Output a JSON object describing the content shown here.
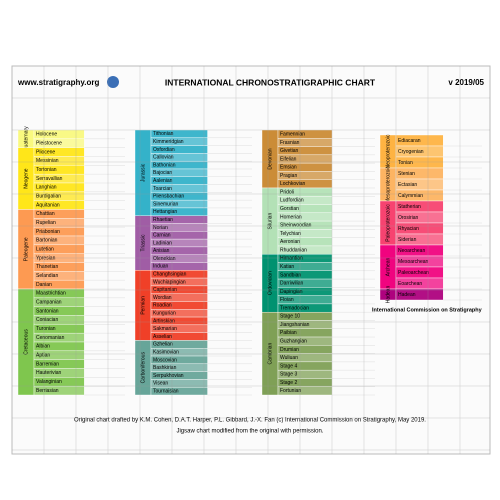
{
  "header": {
    "url": "www.stratigraphy.org",
    "title": "INTERNATIONAL CHRONOSTRATIGRAPHIC CHART",
    "version": "v 2019/05"
  },
  "columns": [
    {
      "periods": [
        {
          "name": "Quaternary",
          "color": "#f9f97f",
          "stages": [
            "Holocene",
            "Pleistocene"
          ]
        },
        {
          "name": "Neogene",
          "color": "#ffe619",
          "stages": [
            "Pliocene",
            "Messinian",
            "Tortonian",
            "Serravallian",
            "Langhian",
            "Burdigalian",
            "Aquitanian"
          ]
        },
        {
          "name": "Paleogene",
          "color": "#fd9a52",
          "stages": [
            "Chattian",
            "Rupelian",
            "Priabonian",
            "Bartonian",
            "Lutetian",
            "Ypresian",
            "Thanetian",
            "Selandian",
            "Danian"
          ]
        },
        {
          "name": "Cretaceous",
          "color": "#7fc64e",
          "stages": [
            "Maastrichtian",
            "Campanian",
            "Santonian",
            "Coniacian",
            "Turonian",
            "Cenomanian",
            "Albian",
            "Aptian",
            "Barremian",
            "Hauterivian",
            "Valanginian",
            "Berriasian"
          ]
        }
      ]
    },
    {
      "periods": [
        {
          "name": "Jurassic",
          "color": "#34b2c9",
          "stages": [
            "Tithonian",
            "Kimmeridgian",
            "Oxfordian",
            "Callovian",
            "Bathonian",
            "Bajocian",
            "Aalenian",
            "Toarcian",
            "Pliensbachian",
            "Sinemurian",
            "Hettangian"
          ]
        },
        {
          "name": "Triassic",
          "color": "#a05da5",
          "stages": [
            "Rhaetian",
            "Norian",
            "Carnian",
            "Ladinian",
            "Anisian",
            "Olenekian",
            "Induan"
          ]
        },
        {
          "name": "Permian",
          "color": "#f04028",
          "stages": [
            "Changhsingian",
            "Wuchiapingian",
            "Capitanian",
            "Wordian",
            "Roadian",
            "Kungurian",
            "Artinskian",
            "Sakmarian",
            "Asselian"
          ]
        },
        {
          "name": "Carboniferous",
          "color": "#67a599",
          "stages": [
            "Gzhelian",
            "Kasimovian",
            "Moscovian",
            "Bashkirian",
            "Serpukhovian",
            "Visean",
            "Tournaisian"
          ]
        }
      ]
    },
    {
      "periods": [
        {
          "name": "Devonian",
          "color": "#cb8c37",
          "stages": [
            "Famennian",
            "Frasnian",
            "Givetian",
            "Eifelian",
            "Emsian",
            "Pragian",
            "Lochkovian"
          ]
        },
        {
          "name": "Silurian",
          "color": "#b3e1b6",
          "stages": [
            "Pridoli",
            "Ludfordian",
            "Gorstian",
            "Homerian",
            "Sheinwoodian",
            "Telychian",
            "Aeronian",
            "Rhuddanian"
          ]
        },
        {
          "name": "Ordovician",
          "color": "#009270",
          "stages": [
            "Hirnantian",
            "Katian",
            "Sandbian",
            "Darriwilian",
            "Dapingian",
            "Floian",
            "Tremadocian"
          ]
        },
        {
          "name": "Cambrian",
          "color": "#7fa056",
          "stages": [
            "Stage 10",
            "Jiangshanian",
            "Paibian",
            "Guzhangian",
            "Drumian",
            "Wuliuan",
            "Stage 4",
            "Stage 3",
            "Stage 2",
            "Fortunian"
          ]
        }
      ]
    },
    {
      "periods": [
        {
          "name": "Neoproterozoic",
          "color": "#feb342",
          "stages": [
            "Ediacaran",
            "Cryogenian",
            "Tonian"
          ]
        },
        {
          "name": "Mesoproterozoic",
          "color": "#fdb462",
          "stages": [
            "Stenian",
            "Ectasian",
            "Calymmian"
          ]
        },
        {
          "name": "Paleoproterozoic",
          "color": "#f74370",
          "stages": [
            "Statherian",
            "Orosirian",
            "Rhyacian",
            "Siderian"
          ]
        },
        {
          "name": "Archean",
          "color": "#f0047f",
          "stages": [
            "Neoarchean",
            "Mesoarchean",
            "Paleoarchean",
            "Eoarchean"
          ]
        },
        {
          "name": "Hadean",
          "color": "#ae027e",
          "stages": [
            "Hadean"
          ]
        }
      ]
    }
  ],
  "commission": "International Commission on Stratigraphy",
  "footer": [
    "Original chart drafted by K.M. Cohen, D.A.T. Harper, P.L. Gibbard, J.-X. Fan (c) International Commission on Stratigraphy, May 2019.",
    "Jigsaw chart modified from the original with permission."
  ]
}
